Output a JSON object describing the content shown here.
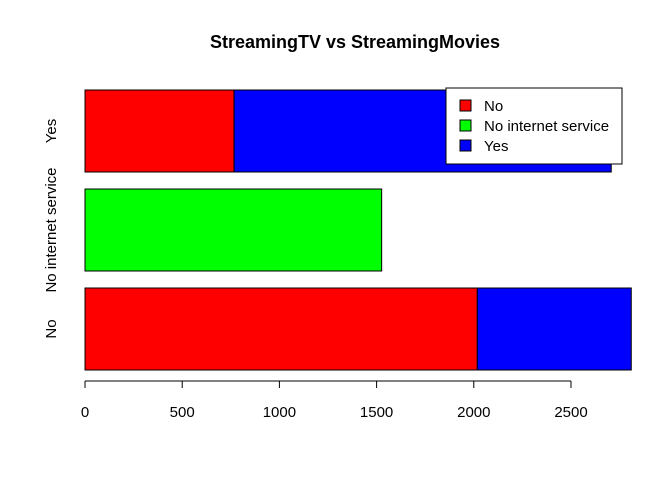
{
  "chart_data": {
    "type": "bar",
    "orientation": "horizontal",
    "stacked": true,
    "title": "StreamingTV vs StreamingMovies",
    "xlabel": "",
    "ylabel": "",
    "categories": [
      "No",
      "No internet service",
      "Yes"
    ],
    "series": [
      {
        "name": "No",
        "color": "#ff0000",
        "values": [
          2018,
          0,
          767
        ]
      },
      {
        "name": "No internet service",
        "color": "#00ff00",
        "values": [
          0,
          1526,
          0
        ]
      },
      {
        "name": "Yes",
        "color": "#0000ff",
        "values": [
          792,
          0,
          1940
        ]
      }
    ],
    "xticks": [
      0,
      500,
      1000,
      1500,
      2000,
      2500
    ],
    "xlim": [
      0,
      2810
    ],
    "grid": false,
    "legend_position": "top-right"
  }
}
